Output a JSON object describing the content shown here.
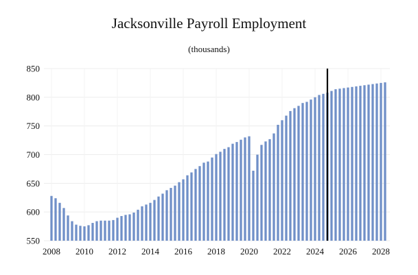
{
  "chart_data": {
    "type": "bar",
    "title": "Jacksonville Payroll Employment",
    "subtitle": "(thousands)",
    "xlabel": "",
    "ylabel": "",
    "ylim": [
      550,
      850
    ],
    "y_ticks": [
      "550",
      "600",
      "650",
      "700",
      "750",
      "800",
      "850"
    ],
    "x_ticks": [
      "2008",
      "2010",
      "2012",
      "2014",
      "2016",
      "2018",
      "2020",
      "2022",
      "2024",
      "2026",
      "2028"
    ],
    "x_range": [
      2008.0,
      2028.0
    ],
    "grid": true,
    "bar_color": "#7090c8",
    "forecast_line_color": "#000000",
    "forecast_start": 2024.75,
    "x": [
      2008.0,
      2008.25,
      2008.5,
      2008.75,
      2009.0,
      2009.25,
      2009.5,
      2009.75,
      2010.0,
      2010.25,
      2010.5,
      2010.75,
      2011.0,
      2011.25,
      2011.5,
      2011.75,
      2012.0,
      2012.25,
      2012.5,
      2012.75,
      2013.0,
      2013.25,
      2013.5,
      2013.75,
      2014.0,
      2014.25,
      2014.5,
      2014.75,
      2015.0,
      2015.25,
      2015.5,
      2015.75,
      2016.0,
      2016.25,
      2016.5,
      2016.75,
      2017.0,
      2017.25,
      2017.5,
      2017.75,
      2018.0,
      2018.25,
      2018.5,
      2018.75,
      2019.0,
      2019.25,
      2019.5,
      2019.75,
      2020.0,
      2020.25,
      2020.5,
      2020.75,
      2021.0,
      2021.25,
      2021.5,
      2021.75,
      2022.0,
      2022.25,
      2022.5,
      2022.75,
      2023.0,
      2023.25,
      2023.5,
      2023.75,
      2024.0,
      2024.25,
      2024.5,
      2024.75,
      2025.0,
      2025.25,
      2025.5,
      2025.75,
      2026.0,
      2026.25,
      2026.5,
      2026.75,
      2027.0,
      2027.25,
      2027.5,
      2027.75,
      2028.0,
      2028.25
    ],
    "values": [
      628,
      624,
      616,
      607,
      594,
      584,
      578,
      576,
      575,
      577,
      581,
      584,
      585,
      585,
      585,
      586,
      590,
      593,
      595,
      596,
      599,
      604,
      610,
      613,
      616,
      621,
      627,
      632,
      638,
      642,
      646,
      652,
      657,
      664,
      669,
      675,
      680,
      686,
      688,
      695,
      701,
      705,
      710,
      713,
      719,
      722,
      726,
      730,
      732,
      672,
      700,
      717,
      723,
      727,
      737,
      752,
      760,
      768,
      776,
      781,
      785,
      790,
      792,
      796,
      800,
      804,
      806,
      808,
      811,
      814,
      815,
      816,
      817,
      818,
      819,
      820,
      821,
      822,
      823,
      824,
      825,
      826
    ]
  }
}
